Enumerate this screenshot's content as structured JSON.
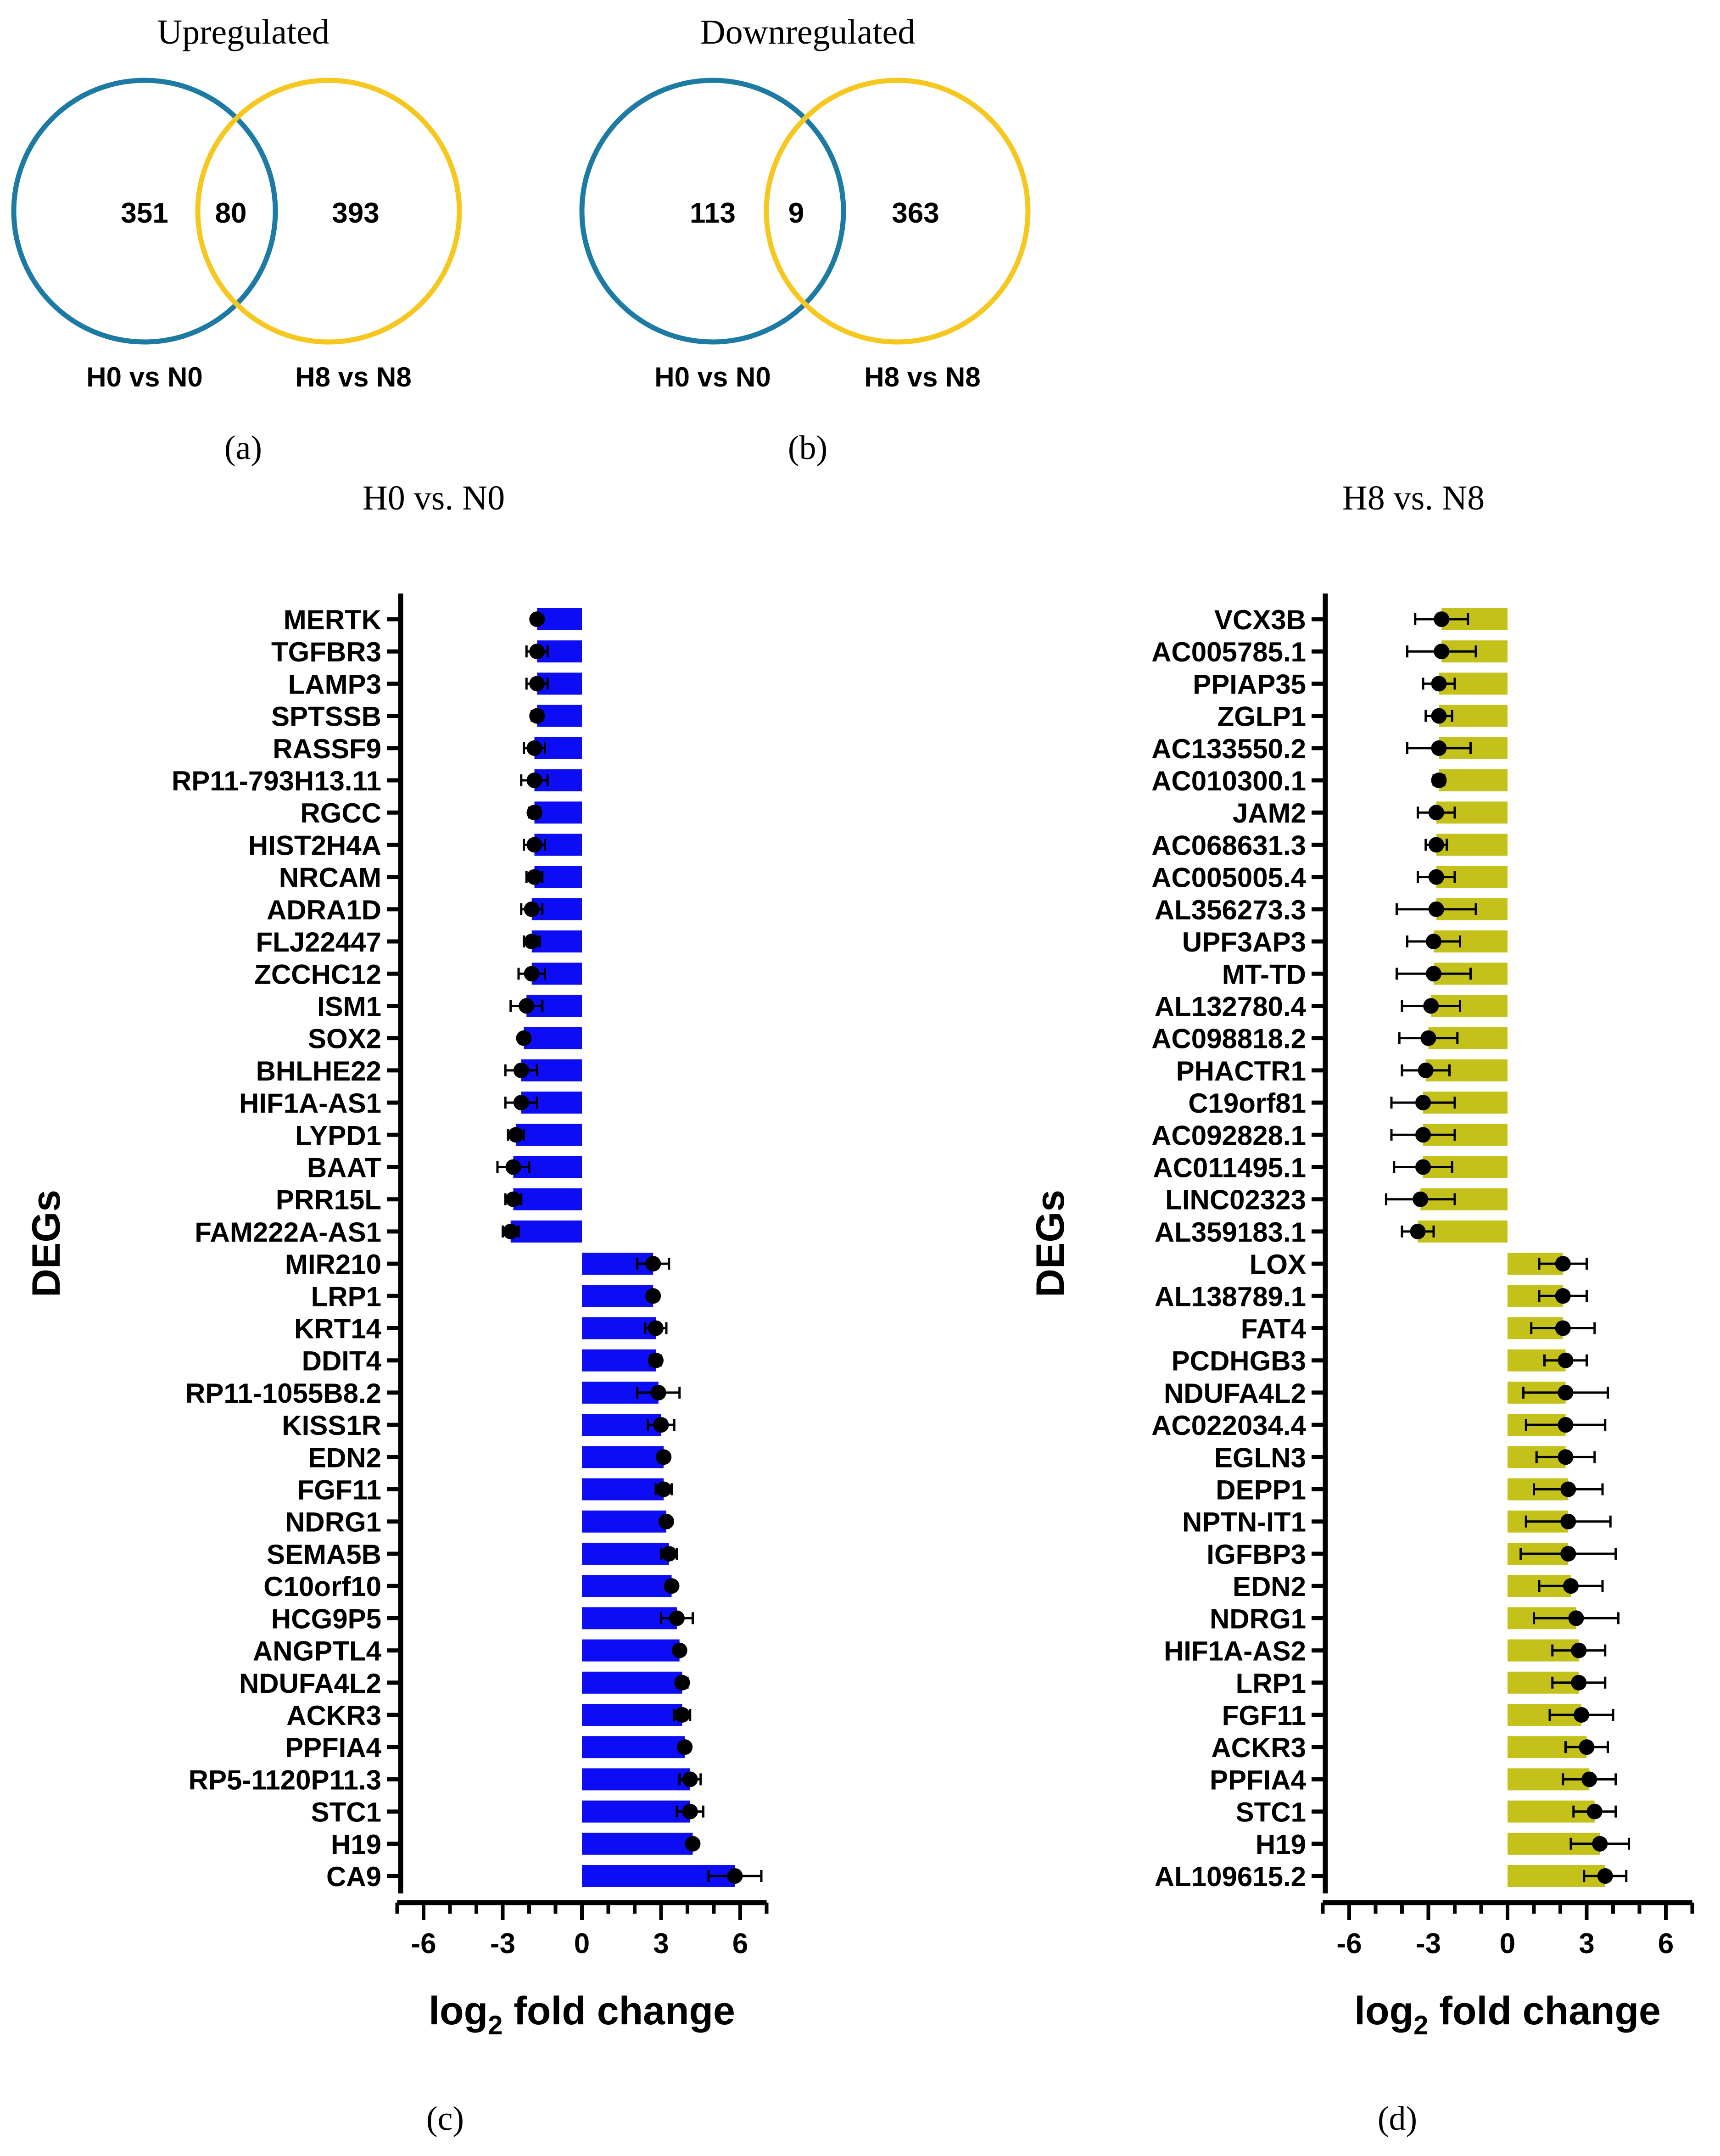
{
  "figure": {
    "panel_labels": [
      "(a)",
      "(b)",
      "(c)",
      "(d)"
    ],
    "colors": {
      "venn_left": "#1c7aa3",
      "venn_right": "#f6c71f",
      "bars_c": "#0d0df5",
      "bars_d": "#c4c21a",
      "points": "#000000"
    }
  },
  "venn_a": {
    "title": "Upregulated",
    "left_only": "351",
    "overlap": "80",
    "right_only": "393",
    "left_label": "H0 vs N0",
    "right_label": "H8 vs N8"
  },
  "venn_b": {
    "title": "Downregulated",
    "left_only": "113",
    "overlap": "9",
    "right_only": "363",
    "left_label": "H0 vs N0",
    "right_label": "H8 vs N8"
  },
  "chart_data": [
    {
      "type": "bar",
      "orientation": "horizontal",
      "title": "H0 vs. N0",
      "ylabel": "DEGs",
      "xlabel": "log2 fold change",
      "xlim": [
        -7,
        7
      ],
      "xticks": [
        -6,
        -3,
        0,
        3,
        6
      ],
      "categories": [
        "MERTK",
        "TGFBR3",
        "LAMP3",
        "SPTSSB",
        "RASSF9",
        "RP11-793H13.11",
        "RGCC",
        "HIST2H4A",
        "NRCAM",
        "ADRA1D",
        "FLJ22447",
        "ZCCHC12",
        "ISM1",
        "SOX2",
        "BHLHE22",
        "HIF1A-AS1",
        "LYPD1",
        "BAAT",
        "PRR15L",
        "FAM222A-AS1",
        "MIR210",
        "LRP1",
        "KRT14",
        "DDIT4",
        "RP11-1055B8.2",
        "KISS1R",
        "EDN2",
        "FGF11",
        "NDRG1",
        "SEMA5B",
        "C10orf10",
        "HCG9P5",
        "ANGPTL4",
        "NDUFA4L2",
        "ACKR3",
        "PPFIA4",
        "RP5-1120P11.3",
        "STC1",
        "H19",
        "CA9"
      ],
      "values": [
        -1.7,
        -1.7,
        -1.7,
        -1.7,
        -1.8,
        -1.8,
        -1.8,
        -1.8,
        -1.8,
        -1.9,
        -1.9,
        -1.9,
        -2.1,
        -2.2,
        -2.3,
        -2.3,
        -2.5,
        -2.6,
        -2.6,
        -2.7,
        2.7,
        2.7,
        2.8,
        2.8,
        2.9,
        3.0,
        3.1,
        3.1,
        3.2,
        3.3,
        3.4,
        3.6,
        3.7,
        3.8,
        3.8,
        3.9,
        4.1,
        4.1,
        4.2,
        5.8
      ],
      "errors": [
        0.1,
        0.4,
        0.4,
        0.2,
        0.4,
        0.5,
        0.2,
        0.4,
        0.3,
        0.4,
        0.3,
        0.5,
        0.6,
        0.1,
        0.6,
        0.6,
        0.3,
        0.6,
        0.3,
        0.3,
        0.6,
        0.1,
        0.4,
        0.2,
        0.8,
        0.5,
        0.1,
        0.3,
        0.1,
        0.3,
        0.1,
        0.6,
        0.1,
        0.2,
        0.3,
        0.1,
        0.4,
        0.5,
        0.1,
        1.0
      ],
      "bar_color": "#0d0df5"
    },
    {
      "type": "bar",
      "orientation": "horizontal",
      "title": "H8 vs. N8",
      "ylabel": "DEGs",
      "xlabel": "log2 fold change",
      "xlim": [
        -7,
        7
      ],
      "xticks": [
        -6,
        -3,
        0,
        3,
        6
      ],
      "categories": [
        "VCX3B",
        "AC005785.1",
        "PPIAP35",
        "ZGLP1",
        "AC133550.2",
        "AC010300.1",
        "JAM2",
        "AC068631.3",
        "AC005005.4",
        "AL356273.3",
        "UPF3AP3",
        "MT-TD",
        "AL132780.4",
        "AC098818.2",
        "PHACTR1",
        "C19orf81",
        "AC092828.1",
        "AC011495.1",
        "LINC02323",
        "AL359183.1",
        "LOX",
        "AL138789.1",
        "FAT4",
        "PCDHGB3",
        "NDUFA4L2",
        "AC022034.4",
        "EGLN3",
        "DEPP1",
        "NPTN-IT1",
        "IGFBP3",
        "EDN2",
        "NDRG1",
        "HIF1A-AS2",
        "LRP1",
        "FGF11",
        "ACKR3",
        "PPFIA4",
        "STC1",
        "H19",
        "AL109615.2"
      ],
      "values": [
        -2.5,
        -2.5,
        -2.6,
        -2.6,
        -2.6,
        -2.6,
        -2.7,
        -2.7,
        -2.7,
        -2.7,
        -2.8,
        -2.8,
        -2.9,
        -3.0,
        -3.1,
        -3.2,
        -3.2,
        -3.2,
        -3.3,
        -3.4,
        2.1,
        2.1,
        2.1,
        2.2,
        2.2,
        2.2,
        2.2,
        2.3,
        2.3,
        2.3,
        2.4,
        2.6,
        2.7,
        2.7,
        2.8,
        3.0,
        3.1,
        3.3,
        3.5,
        3.7
      ],
      "errors": [
        1.0,
        1.3,
        0.6,
        0.5,
        1.2,
        0.2,
        0.7,
        0.4,
        0.7,
        1.5,
        1.0,
        1.4,
        1.1,
        1.1,
        0.9,
        1.2,
        1.2,
        1.1,
        1.3,
        0.6,
        0.9,
        0.9,
        1.2,
        0.8,
        1.6,
        1.5,
        1.1,
        1.3,
        1.6,
        1.8,
        1.2,
        1.6,
        1.0,
        1.0,
        1.2,
        0.8,
        1.0,
        0.8,
        1.1,
        0.8
      ],
      "bar_color": "#c4c21a"
    }
  ]
}
